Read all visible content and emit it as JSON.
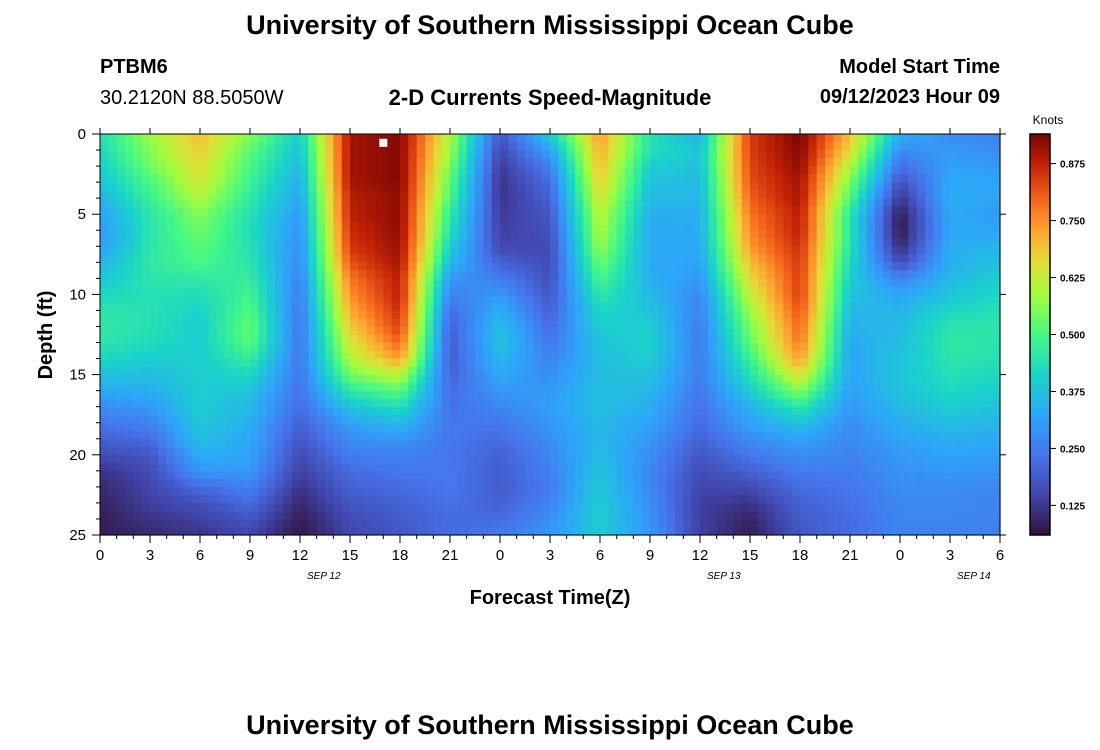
{
  "page": {
    "title": "University of Southern Mississippi Ocean Cube",
    "title_repeat": "University of Southern Mississippi Ocean Cube",
    "station_id": "PTBM6",
    "station_coords": "30.2120N  88.5050W",
    "chart_heading": "2-D Currents Speed-Magnitude",
    "model_start_label": "Model Start Time",
    "model_start_value": "09/12/2023 Hour 09"
  },
  "chart_data": {
    "type": "heatmap",
    "title": "2-D Currents Speed-Magnitude",
    "xlabel": "Forecast Time(Z)",
    "ylabel": "Depth (ft)",
    "x_range": [
      "09/12/2023 00Z",
      "09/14/2023 06Z"
    ],
    "ylim": [
      0,
      25
    ],
    "y_inverted": true,
    "x_tick_labels": [
      "0",
      "3",
      "6",
      "9",
      "12",
      "15",
      "18",
      "21",
      "0",
      "3",
      "6",
      "9",
      "12",
      "15",
      "18",
      "21",
      "0",
      "3",
      "6"
    ],
    "y_tick_labels": [
      "0",
      "5",
      "10",
      "15",
      "20",
      "25"
    ],
    "date_labels": [
      {
        "text": "SEP 12",
        "after_tick_index": 4
      },
      {
        "text": "SEP 13",
        "after_tick_index": 12
      },
      {
        "text": "SEP 14",
        "after_tick_index": 17
      }
    ],
    "colorbar": {
      "label": "Knots",
      "range": [
        0.06,
        0.94
      ],
      "tick_labels": [
        "0.875",
        "0.750",
        "0.625",
        "0.500",
        "0.375",
        "0.250",
        "0.125"
      ],
      "tick_values": [
        0.875,
        0.75,
        0.625,
        0.5,
        0.375,
        0.25,
        0.125
      ]
    },
    "grid": false,
    "marker": {
      "label": "",
      "hour": 17,
      "depth": 0.3,
      "color": "#ffffff"
    },
    "depth_levels_ft": [
      0,
      1,
      2,
      3,
      4,
      5,
      6,
      7,
      8,
      9,
      10,
      11,
      12,
      13,
      14,
      15,
      16,
      17,
      18,
      19,
      20,
      21,
      22,
      23,
      24,
      25
    ],
    "profile_hours": [
      0,
      3,
      6,
      9,
      12,
      15,
      18,
      21,
      24,
      27,
      30,
      33,
      36,
      39,
      42,
      45,
      48,
      51,
      54
    ],
    "speed_knots_by_depth": [
      [
        0.44,
        0.58,
        0.7,
        0.56,
        0.4,
        0.9,
        0.93,
        0.6,
        0.18,
        0.4,
        0.74,
        0.44,
        0.35,
        0.84,
        0.94,
        0.7,
        0.34,
        0.28,
        0.26
      ],
      [
        0.42,
        0.56,
        0.68,
        0.52,
        0.38,
        0.9,
        0.93,
        0.58,
        0.15,
        0.32,
        0.72,
        0.44,
        0.38,
        0.84,
        0.93,
        0.66,
        0.28,
        0.3,
        0.28
      ],
      [
        0.4,
        0.54,
        0.66,
        0.5,
        0.36,
        0.9,
        0.93,
        0.55,
        0.13,
        0.26,
        0.7,
        0.4,
        0.38,
        0.83,
        0.92,
        0.6,
        0.22,
        0.32,
        0.3
      ],
      [
        0.38,
        0.5,
        0.64,
        0.48,
        0.34,
        0.9,
        0.93,
        0.52,
        0.12,
        0.22,
        0.68,
        0.38,
        0.36,
        0.82,
        0.9,
        0.55,
        0.17,
        0.33,
        0.32
      ],
      [
        0.35,
        0.48,
        0.6,
        0.46,
        0.32,
        0.88,
        0.92,
        0.5,
        0.12,
        0.2,
        0.65,
        0.36,
        0.36,
        0.8,
        0.9,
        0.5,
        0.12,
        0.34,
        0.32
      ],
      [
        0.32,
        0.45,
        0.56,
        0.44,
        0.3,
        0.88,
        0.92,
        0.46,
        0.13,
        0.18,
        0.62,
        0.34,
        0.34,
        0.78,
        0.88,
        0.45,
        0.08,
        0.33,
        0.3
      ],
      [
        0.3,
        0.45,
        0.54,
        0.43,
        0.29,
        0.86,
        0.92,
        0.44,
        0.14,
        0.17,
        0.6,
        0.33,
        0.34,
        0.76,
        0.88,
        0.45,
        0.07,
        0.33,
        0.32
      ],
      [
        0.31,
        0.45,
        0.52,
        0.44,
        0.28,
        0.85,
        0.91,
        0.4,
        0.15,
        0.16,
        0.58,
        0.33,
        0.33,
        0.74,
        0.86,
        0.44,
        0.1,
        0.34,
        0.35
      ],
      [
        0.35,
        0.46,
        0.5,
        0.45,
        0.27,
        0.82,
        0.9,
        0.36,
        0.2,
        0.16,
        0.54,
        0.33,
        0.32,
        0.7,
        0.85,
        0.42,
        0.16,
        0.34,
        0.37
      ],
      [
        0.38,
        0.45,
        0.46,
        0.47,
        0.26,
        0.78,
        0.88,
        0.3,
        0.25,
        0.17,
        0.5,
        0.34,
        0.3,
        0.66,
        0.84,
        0.4,
        0.26,
        0.36,
        0.4
      ],
      [
        0.42,
        0.44,
        0.43,
        0.49,
        0.25,
        0.75,
        0.88,
        0.26,
        0.3,
        0.18,
        0.46,
        0.36,
        0.27,
        0.62,
        0.84,
        0.38,
        0.32,
        0.38,
        0.42
      ],
      [
        0.45,
        0.44,
        0.41,
        0.51,
        0.24,
        0.72,
        0.86,
        0.22,
        0.34,
        0.2,
        0.42,
        0.38,
        0.26,
        0.58,
        0.82,
        0.36,
        0.35,
        0.42,
        0.44
      ],
      [
        0.46,
        0.44,
        0.4,
        0.53,
        0.24,
        0.68,
        0.84,
        0.2,
        0.37,
        0.22,
        0.4,
        0.4,
        0.25,
        0.55,
        0.8,
        0.34,
        0.36,
        0.45,
        0.45
      ],
      [
        0.45,
        0.43,
        0.4,
        0.52,
        0.24,
        0.64,
        0.8,
        0.19,
        0.38,
        0.24,
        0.38,
        0.41,
        0.25,
        0.52,
        0.78,
        0.33,
        0.37,
        0.46,
        0.45
      ],
      [
        0.42,
        0.4,
        0.4,
        0.47,
        0.24,
        0.6,
        0.74,
        0.19,
        0.36,
        0.26,
        0.37,
        0.4,
        0.25,
        0.48,
        0.74,
        0.32,
        0.38,
        0.45,
        0.44
      ],
      [
        0.38,
        0.37,
        0.4,
        0.42,
        0.24,
        0.54,
        0.62,
        0.2,
        0.33,
        0.28,
        0.37,
        0.38,
        0.25,
        0.44,
        0.66,
        0.32,
        0.38,
        0.44,
        0.42
      ],
      [
        0.33,
        0.34,
        0.4,
        0.38,
        0.23,
        0.46,
        0.52,
        0.22,
        0.3,
        0.3,
        0.37,
        0.36,
        0.24,
        0.4,
        0.56,
        0.31,
        0.38,
        0.42,
        0.4
      ],
      [
        0.28,
        0.3,
        0.4,
        0.36,
        0.22,
        0.38,
        0.44,
        0.23,
        0.27,
        0.31,
        0.37,
        0.34,
        0.23,
        0.35,
        0.46,
        0.3,
        0.36,
        0.4,
        0.38
      ],
      [
        0.24,
        0.26,
        0.39,
        0.34,
        0.2,
        0.32,
        0.36,
        0.24,
        0.24,
        0.3,
        0.36,
        0.32,
        0.22,
        0.32,
        0.38,
        0.28,
        0.34,
        0.37,
        0.35
      ],
      [
        0.2,
        0.22,
        0.37,
        0.33,
        0.18,
        0.28,
        0.3,
        0.24,
        0.22,
        0.28,
        0.36,
        0.3,
        0.2,
        0.28,
        0.32,
        0.27,
        0.32,
        0.34,
        0.33
      ],
      [
        0.16,
        0.18,
        0.34,
        0.32,
        0.16,
        0.25,
        0.26,
        0.24,
        0.2,
        0.27,
        0.37,
        0.28,
        0.18,
        0.24,
        0.28,
        0.26,
        0.3,
        0.32,
        0.31
      ],
      [
        0.12,
        0.16,
        0.3,
        0.3,
        0.14,
        0.22,
        0.24,
        0.24,
        0.19,
        0.26,
        0.38,
        0.27,
        0.16,
        0.2,
        0.25,
        0.25,
        0.29,
        0.3,
        0.29
      ],
      [
        0.1,
        0.15,
        0.22,
        0.26,
        0.12,
        0.2,
        0.22,
        0.24,
        0.19,
        0.25,
        0.39,
        0.27,
        0.15,
        0.16,
        0.22,
        0.24,
        0.28,
        0.28,
        0.27
      ],
      [
        0.09,
        0.14,
        0.17,
        0.22,
        0.1,
        0.18,
        0.2,
        0.23,
        0.2,
        0.26,
        0.4,
        0.28,
        0.14,
        0.12,
        0.2,
        0.23,
        0.27,
        0.27,
        0.26
      ],
      [
        0.08,
        0.12,
        0.14,
        0.18,
        0.08,
        0.16,
        0.19,
        0.22,
        0.22,
        0.28,
        0.4,
        0.29,
        0.14,
        0.09,
        0.19,
        0.22,
        0.27,
        0.27,
        0.26
      ],
      [
        0.08,
        0.1,
        0.12,
        0.15,
        0.07,
        0.15,
        0.18,
        0.22,
        0.24,
        0.3,
        0.4,
        0.3,
        0.14,
        0.08,
        0.18,
        0.22,
        0.26,
        0.26,
        0.25
      ]
    ]
  }
}
